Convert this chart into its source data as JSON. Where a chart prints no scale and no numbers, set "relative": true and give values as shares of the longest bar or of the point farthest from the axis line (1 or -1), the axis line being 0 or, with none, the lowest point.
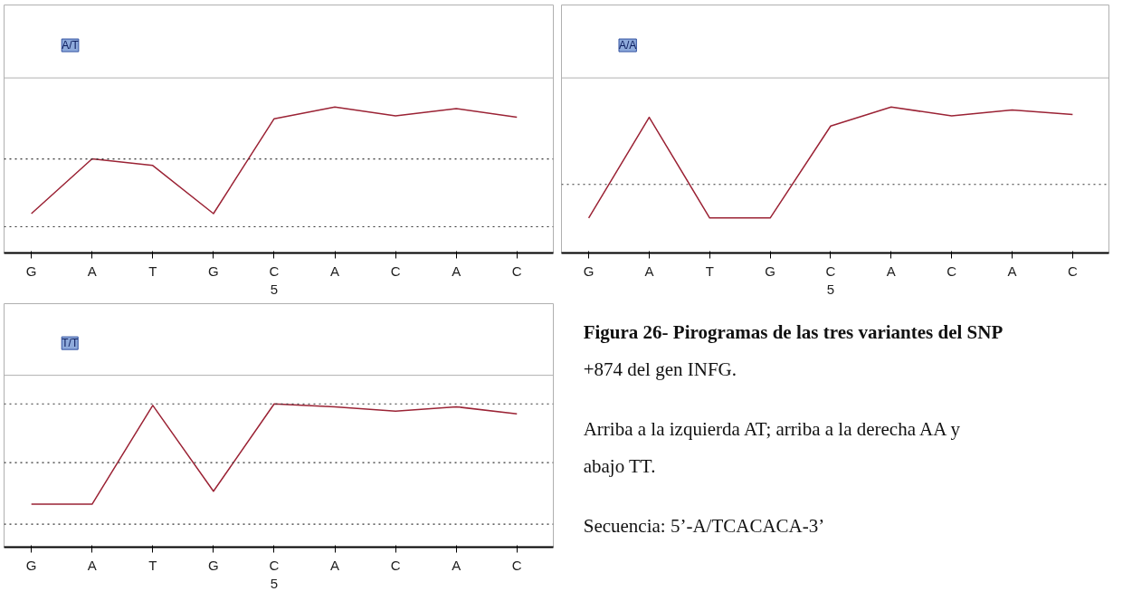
{
  "chart_data": [
    {
      "type": "line",
      "relative": true,
      "tick_labels": "x",
      "color": "#9b2335",
      "line_style": "solid",
      "marker": "none",
      "categories": [
        "G",
        "A",
        "T",
        "G",
        "C\n5",
        "A",
        "C",
        "A",
        "C"
      ],
      "annotations": [
        "A/T"
      ],
      "ref_lines": [
        {
          "axis": "y",
          "value": 0.645,
          "line_style": "dotted",
          "color": "#333333"
        },
        {
          "axis": "y",
          "value": 0.18,
          "line_style": "dotted",
          "color": "#333333"
        }
      ],
      "values": [
        0.27,
        0.645,
        0.6,
        0.27,
        0.92,
        1.0,
        0.94,
        0.99,
        0.93
      ]
    },
    {
      "type": "line",
      "relative": true,
      "tick_labels": "x",
      "color": "#9b2335",
      "line_style": "solid",
      "marker": "none",
      "categories": [
        "G",
        "A",
        "T",
        "G",
        "C\n5",
        "A",
        "C",
        "A",
        "C"
      ],
      "annotations": [
        "A/A"
      ],
      "ref_lines": [
        {
          "axis": "y",
          "value": 0.47,
          "line_style": "dotted",
          "color": "#333333"
        }
      ],
      "values": [
        0.24,
        0.93,
        0.24,
        0.24,
        0.87,
        1.0,
        0.94,
        0.98,
        0.95
      ]
    },
    {
      "type": "line",
      "relative": true,
      "tick_labels": "x",
      "color": "#9b2335",
      "line_style": "solid",
      "marker": "none",
      "categories": [
        "G",
        "A",
        "T",
        "G",
        "C\n5",
        "A",
        "C",
        "A",
        "C"
      ],
      "annotations": [
        "T/T"
      ],
      "ref_lines": [
        {
          "axis": "y",
          "value": 1.0,
          "line_style": "dotted",
          "color": "#333333"
        },
        {
          "axis": "y",
          "value": 0.59,
          "line_style": "dotted",
          "color": "#333333"
        },
        {
          "axis": "y",
          "value": 0.16,
          "line_style": "dotted",
          "color": "#333333"
        }
      ],
      "values": [
        0.3,
        0.3,
        0.99,
        0.39,
        1.0,
        0.98,
        0.95,
        0.98,
        0.93
      ]
    },
    {
      "type": "other",
      "annotations": [
        "Figura 26- Pirogramas de las tres variantes del SNP +874 del gen INFG.",
        "Arriba a la izquierda AT; arriba a la derecha AA y abajo TT.",
        "Secuencia: 5’-A/TCACACA-3’"
      ]
    }
  ]
}
